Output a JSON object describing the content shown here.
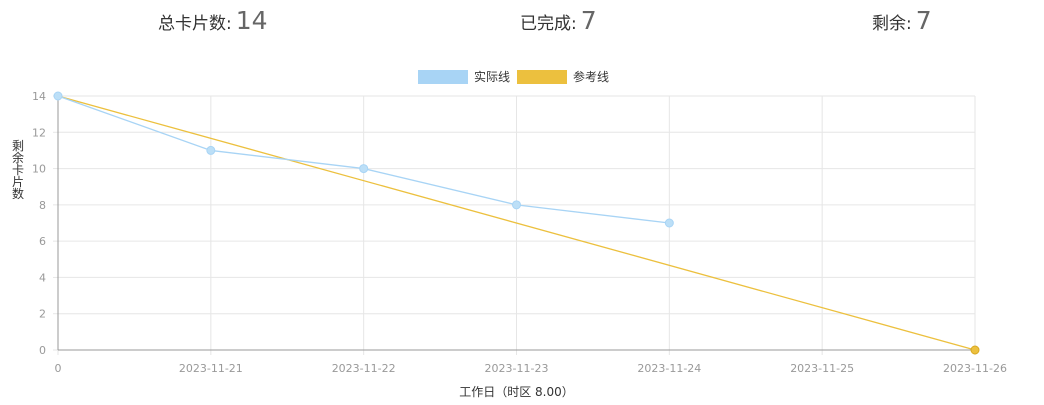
{
  "stats": {
    "total_label": "总卡片数:",
    "total_value": "14",
    "done_label": "已完成:",
    "done_value": "7",
    "remain_label": "剩余:",
    "remain_value": "7"
  },
  "colors": {
    "actual": "#a8d4f5",
    "actual_point": "#bcdff7",
    "reference": "#ecc03e",
    "grid": "#e6e6e6",
    "axis": "#999999"
  },
  "chart_data": {
    "type": "line",
    "xlabel": "工作日（时区 8.00）",
    "ylabel": "剩余卡片数",
    "ylim": [
      0,
      14
    ],
    "yticks": [
      0,
      2,
      4,
      6,
      8,
      10,
      12,
      14
    ],
    "categories": [
      "0",
      "2023-11-21",
      "2023-11-22",
      "2023-11-23",
      "2023-11-24",
      "2023-11-25",
      "2023-11-26"
    ],
    "legend_position": "top-center",
    "grid": true,
    "series": [
      {
        "name": "实际线",
        "color_key": "actual",
        "values": [
          14,
          11,
          10,
          8,
          7,
          null,
          null
        ]
      },
      {
        "name": "参考线",
        "color_key": "reference",
        "values": [
          14,
          null,
          null,
          null,
          null,
          null,
          0
        ]
      }
    ]
  }
}
